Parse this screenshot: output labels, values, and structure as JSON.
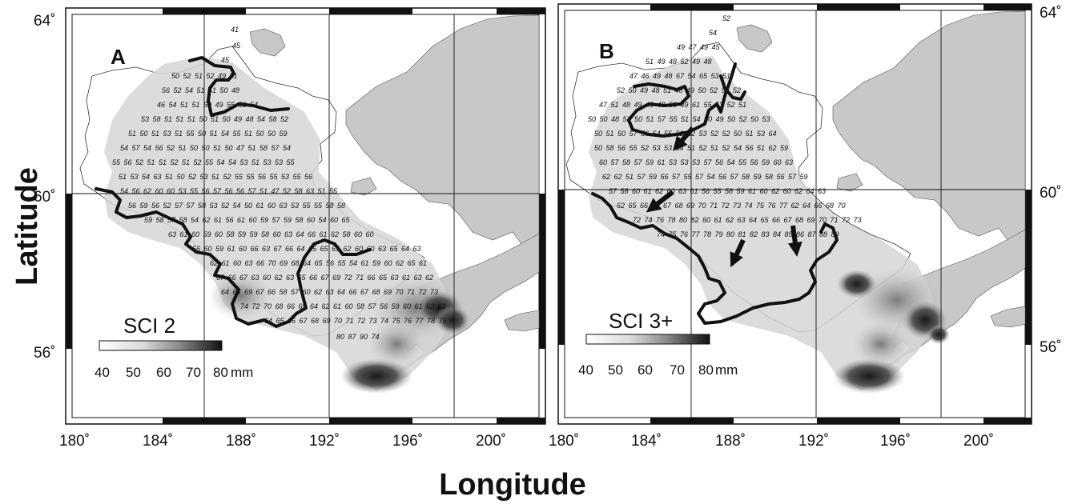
{
  "figure": {
    "x_axis_title": "Longitude",
    "y_axis_title": "Latitude",
    "top_ticks": [
      "64˚",
      "64˚"
    ],
    "left_lat_ticks": [
      "64˚",
      "60˚",
      "56˚"
    ],
    "right_lat_ticks": [
      "64˚",
      "60˚",
      "56˚"
    ],
    "colors": {
      "land": "#c8c8c8",
      "ink": "#111111",
      "background": "#ffffff"
    }
  },
  "panels": [
    {
      "label": "A",
      "lon_ticks": [
        "180˚",
        "184˚",
        "188˚",
        "192˚",
        "196˚",
        "200˚"
      ],
      "scale": {
        "title": "SCI 2",
        "ticks": [
          "40",
          "50",
          "60",
          "70",
          "80"
        ],
        "unit": "mm"
      },
      "arrows": [],
      "sample_values": [
        "41",
        "45",
        "45",
        "50",
        "52",
        "51",
        "52",
        "49",
        "51",
        "56",
        "52",
        "54",
        "51",
        "51",
        "50",
        "48",
        "46",
        "54",
        "51",
        "51",
        "50",
        "49",
        "55",
        "53",
        "54",
        "53",
        "58",
        "51",
        "51",
        "51",
        "50",
        "51",
        "50",
        "49",
        "48",
        "54",
        "58",
        "52",
        "51",
        "50",
        "51",
        "53",
        "51",
        "55",
        "50",
        "51",
        "54",
        "55",
        "51",
        "50",
        "50",
        "59",
        "54",
        "57",
        "54",
        "56",
        "52",
        "51",
        "50",
        "50",
        "51",
        "50",
        "47",
        "51",
        "58",
        "57",
        "54",
        "55",
        "56",
        "52",
        "51",
        "51",
        "52",
        "51",
        "52",
        "55",
        "54",
        "54",
        "53",
        "51",
        "53",
        "53",
        "55",
        "51",
        "53",
        "54",
        "63",
        "51",
        "50",
        "52",
        "53",
        "51",
        "52",
        "55",
        "55",
        "56",
        "55",
        "53",
        "55",
        "56",
        "54",
        "56",
        "62",
        "60",
        "60",
        "53",
        "55",
        "56",
        "57",
        "56",
        "56",
        "57",
        "51",
        "47",
        "52",
        "58",
        "63",
        "51",
        "55",
        "56",
        "59",
        "56",
        "52",
        "57",
        "57",
        "58",
        "53",
        "52",
        "54",
        "50",
        "61",
        "60",
        "63",
        "53",
        "55",
        "55",
        "58",
        "58",
        "59",
        "58",
        "57",
        "58",
        "54",
        "62",
        "61",
        "56",
        "61",
        "60",
        "59",
        "57",
        "59",
        "58",
        "60",
        "54",
        "60",
        "65",
        "63",
        "61",
        "60",
        "59",
        "60",
        "58",
        "59",
        "59",
        "58",
        "60",
        "63",
        "64",
        "66",
        "61",
        "62",
        "58",
        "60",
        "60",
        "56",
        "60",
        "59",
        "61",
        "60",
        "66",
        "63",
        "67",
        "66",
        "64",
        "65",
        "65",
        "63",
        "62",
        "60",
        "60",
        "63",
        "65",
        "64",
        "63",
        "62",
        "61",
        "60",
        "63",
        "66",
        "70",
        "69",
        "68",
        "64",
        "65",
        "56",
        "55",
        "54",
        "61",
        "59",
        "60",
        "62",
        "65",
        "61",
        "67",
        "66",
        "67",
        "63",
        "60",
        "62",
        "63",
        "65",
        "66",
        "67",
        "69",
        "72",
        "71",
        "66",
        "65",
        "63",
        "61",
        "63",
        "62",
        "64",
        "66",
        "69",
        "67",
        "66",
        "58",
        "57",
        "60",
        "62",
        "63",
        "64",
        "66",
        "67",
        "68",
        "69",
        "70",
        "71",
        "72",
        "73",
        "74",
        "72",
        "70",
        "68",
        "66",
        "65",
        "64",
        "62",
        "61",
        "60",
        "58",
        "57",
        "56",
        "59",
        "60",
        "61",
        "62",
        "63",
        "64",
        "65",
        "66",
        "67",
        "68",
        "69",
        "70",
        "71",
        "72",
        "73",
        "74",
        "75",
        "76",
        "77",
        "78",
        "79",
        "80",
        "87",
        "90",
        "74"
      ]
    },
    {
      "label": "B",
      "lon_ticks": [
        "180˚",
        "184˚",
        "188˚",
        "192˚",
        "196˚",
        "200˚"
      ],
      "scale": {
        "title": "SCI 3+",
        "ticks": [
          "40",
          "50",
          "60",
          "70",
          "80"
        ],
        "unit": "mm"
      },
      "arrows": [
        "arrow-1",
        "arrow-2",
        "arrow-3",
        "arrow-4"
      ],
      "sample_values": [
        "52",
        "54",
        "49",
        "47",
        "49",
        "45",
        "51",
        "49",
        "48",
        "52",
        "49",
        "48",
        "47",
        "46",
        "49",
        "48",
        "67",
        "54",
        "65",
        "53",
        "51",
        "52",
        "50",
        "49",
        "48",
        "51",
        "48",
        "49",
        "50",
        "52",
        "51",
        "52",
        "47",
        "51",
        "48",
        "49",
        "49",
        "48",
        "50",
        "49",
        "61",
        "55",
        "53",
        "52",
        "51",
        "50",
        "50",
        "48",
        "51",
        "50",
        "51",
        "57",
        "55",
        "51",
        "54",
        "50",
        "49",
        "50",
        "52",
        "50",
        "53",
        "50",
        "51",
        "50",
        "57",
        "56",
        "54",
        "55",
        "52",
        "52",
        "53",
        "52",
        "52",
        "50",
        "51",
        "53",
        "64",
        "50",
        "58",
        "56",
        "55",
        "52",
        "53",
        "53",
        "54",
        "51",
        "52",
        "51",
        "52",
        "54",
        "56",
        "51",
        "62",
        "59",
        "60",
        "57",
        "58",
        "57",
        "59",
        "61",
        "53",
        "53",
        "53",
        "57",
        "56",
        "54",
        "55",
        "56",
        "59",
        "60",
        "63",
        "62",
        "62",
        "51",
        "57",
        "59",
        "56",
        "57",
        "55",
        "57",
        "54",
        "56",
        "57",
        "58",
        "59",
        "58",
        "56",
        "57",
        "59",
        "57",
        "58",
        "60",
        "61",
        "62",
        "60",
        "63",
        "61",
        "56",
        "55",
        "58",
        "59",
        "61",
        "60",
        "62",
        "60",
        "62",
        "64",
        "63",
        "62",
        "65",
        "66",
        "64",
        "67",
        "68",
        "69",
        "70",
        "71",
        "72",
        "73",
        "74",
        "75",
        "76",
        "77",
        "62",
        "64",
        "66",
        "68",
        "70",
        "72",
        "74",
        "76",
        "78",
        "80",
        "82",
        "60",
        "61",
        "62",
        "63",
        "64",
        "65",
        "66",
        "67",
        "68",
        "69",
        "70",
        "71",
        "72",
        "73",
        "74",
        "75",
        "76",
        "77",
        "78",
        "79",
        "80",
        "81",
        "82",
        "83",
        "84",
        "85",
        "86",
        "87",
        "88",
        "89"
      ]
    }
  ]
}
